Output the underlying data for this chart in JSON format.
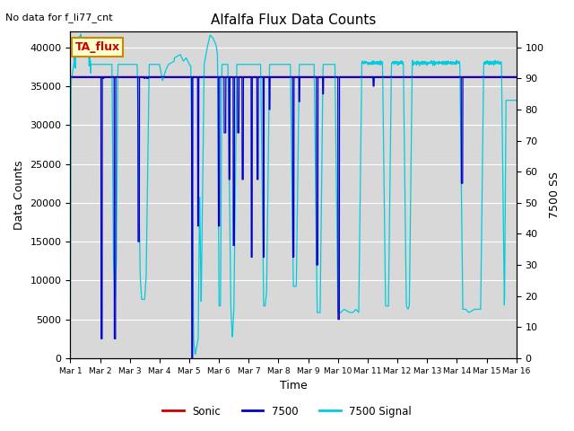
{
  "title": "Alfalfa Flux Data Counts",
  "top_left_text": "No data for f_li77_cnt",
  "xlabel": "Time",
  "ylabel_left": "Data Counts",
  "ylabel_right": "7500 SS",
  "ylim_left": [
    0,
    42000
  ],
  "ylim_right": [
    0,
    105
  ],
  "bg_color": "#d8d8d8",
  "annotation_box_text": "TA_flux",
  "annotation_box_color": "#ffffcc",
  "annotation_box_border": "#cc8800",
  "x_tick_labels": [
    "Mar 1",
    "Mar 2",
    "Mar 3",
    "Mar 4",
    "Mar 5",
    "Mar 6",
    "Mar 7",
    "Mar 8",
    "Mar 9",
    "Mar 10",
    "Mar 11",
    "Mar 12",
    "Mar 13",
    "Mar 14",
    "Mar 15",
    "Mar 16"
  ],
  "num_days": 15,
  "sonic_color": "#cc0000",
  "count_7500_color": "#0000cc",
  "signal_7500_color": "#00ccdd",
  "hline_value": 36200,
  "hline_color": "#0000cc",
  "figsize": [
    6.4,
    4.8
  ],
  "dpi": 100
}
